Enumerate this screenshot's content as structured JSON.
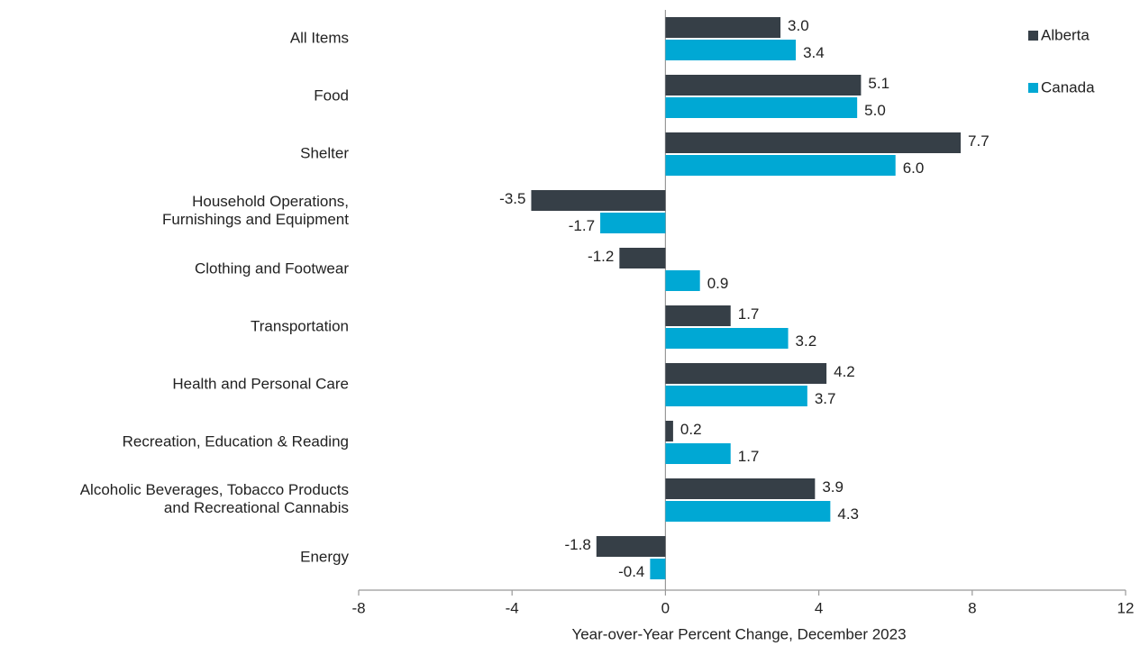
{
  "chart_data": {
    "type": "barh",
    "categories": [
      "All Items",
      "Food",
      "Shelter",
      "Household Operations,\nFurnishings and Equipment",
      "Clothing and Footwear",
      "Transportation",
      "Health and Personal Care",
      "Recreation, Education & Reading",
      "Alcoholic Beverages, Tobacco Products\nand Recreational Cannabis",
      "Energy"
    ],
    "series": [
      {
        "name": "Alberta",
        "color": "#363f47",
        "values": [
          3.0,
          5.1,
          7.7,
          -3.5,
          -1.2,
          1.7,
          4.2,
          0.2,
          3.9,
          -1.8
        ],
        "value_labels": [
          "3.0",
          "5.1",
          "7.7",
          "-3.5",
          "-1.2",
          "1.7",
          "4.2",
          "0.2",
          "3.9",
          "-1.8"
        ]
      },
      {
        "name": "Canada",
        "color": "#00a8d4",
        "values": [
          3.4,
          5.0,
          6.0,
          -1.7,
          0.9,
          3.2,
          3.7,
          1.7,
          4.3,
          -0.4
        ],
        "value_labels": [
          "3.4",
          "5.0",
          "6.0",
          "-1.7",
          "0.9",
          "3.2",
          "3.7",
          "1.7",
          "4.3",
          "-0.4"
        ]
      }
    ],
    "xlabel": "Year-over-Year Percent Change, December 2023",
    "xlim": [
      -8,
      12
    ],
    "xticks": [
      -8,
      -4,
      0,
      4,
      8,
      12
    ],
    "grid": false,
    "legend": "upper right"
  }
}
